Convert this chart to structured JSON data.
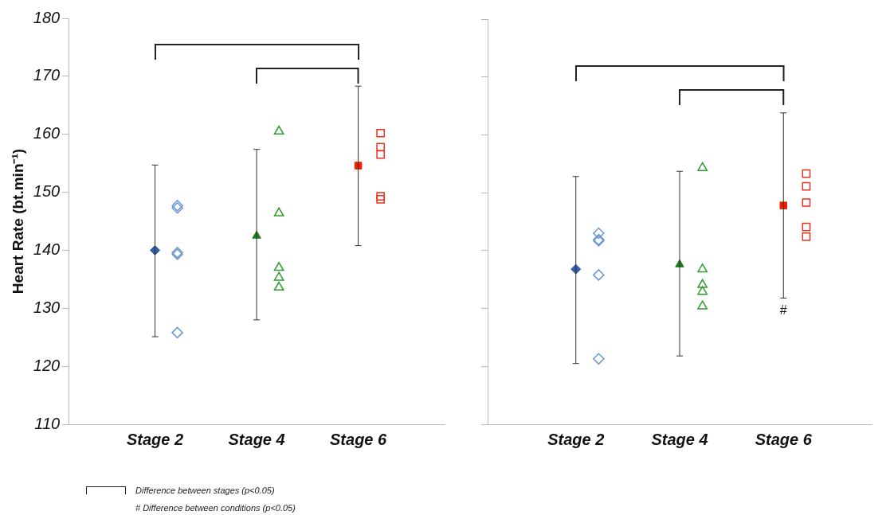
{
  "chart_data": [
    {
      "type": "scatter",
      "categories": [
        "Stage 2",
        "Stage 4",
        "Stage 6"
      ],
      "ylabel": "Heart Rate (bt.min⁻¹)",
      "ylim": [
        110,
        180
      ],
      "yticks": [
        110,
        120,
        130,
        140,
        150,
        160,
        170,
        180
      ],
      "grid": false,
      "annotations": [
        "Difference between stages (p<0.05)",
        "# Difference between conditions (p<0.05)"
      ],
      "series": [
        {
          "color": "#2f5fa6",
          "marker": "diamond",
          "x": [
            "Stage 2"
          ],
          "values": [
            140
          ],
          "errors": [
            [
              125.1,
              154.7
            ]
          ]
        },
        {
          "color": "#6b98d4",
          "marker": "diamond",
          "x": [
            "Stage 2",
            "Stage 2",
            "Stage 2",
            "Stage 2",
            "Stage 2"
          ],
          "values": [
            147.7,
            147.3,
            139.6,
            139.3,
            125.8
          ]
        },
        {
          "color": "#1a7f1a",
          "marker": "triangle",
          "x": [
            "Stage 4"
          ],
          "values": [
            142.5
          ],
          "errors": [
            [
              128,
              157.4
            ]
          ]
        },
        {
          "color": "#2e9a2e",
          "marker": "triangle",
          "x": [
            "Stage 4",
            "Stage 4",
            "Stage 4",
            "Stage 4",
            "Stage 4"
          ],
          "values": [
            160.5,
            146.4,
            137,
            135.3,
            133.6
          ]
        },
        {
          "color": "#f01e00",
          "marker": "square",
          "x": [
            "Stage 6"
          ],
          "values": [
            154.6
          ],
          "errors": [
            [
              140.8,
              168.3
            ]
          ]
        },
        {
          "color": "#f0301e",
          "marker": "square",
          "x": [
            "Stage 6",
            "Stage 6",
            "Stage 6",
            "Stage 6",
            "Stage 6"
          ],
          "values": [
            160.2,
            157.8,
            156.5,
            149.3,
            148.8
          ]
        }
      ]
    },
    {
      "type": "scatter",
      "categories": [
        "Stage 2",
        "Stage 4",
        "Stage 6"
      ],
      "ylim": [
        110,
        180
      ],
      "yticks": [
        110,
        120,
        130,
        140,
        150,
        160,
        170,
        180
      ],
      "grid": false,
      "tick_labels": "x",
      "annotations": [
        "#"
      ],
      "series": [
        {
          "color": "#2f5fa6",
          "marker": "diamond",
          "x": [
            "Stage 2"
          ],
          "values": [
            136.8
          ],
          "errors": [
            [
              120.5,
              152.8
            ]
          ]
        },
        {
          "color": "#6b98d4",
          "marker": "diamond",
          "x": [
            "Stage 2",
            "Stage 2",
            "Stage 2",
            "Stage 2",
            "Stage 2"
          ],
          "values": [
            143,
            141.7,
            141.9,
            135.8,
            121.3
          ]
        },
        {
          "color": "#1a7f1a",
          "marker": "triangle",
          "x": [
            "Stage 4"
          ],
          "values": [
            137.6
          ],
          "errors": [
            [
              121.8,
              153.7
            ]
          ]
        },
        {
          "color": "#2e9a2e",
          "marker": "triangle",
          "x": [
            "Stage 4",
            "Stage 4",
            "Stage 4",
            "Stage 4",
            "Stage 4"
          ],
          "values": [
            154.3,
            136.8,
            134.1,
            132.9,
            130.4
          ]
        },
        {
          "color": "#f01e00",
          "marker": "square",
          "x": [
            "Stage 6"
          ],
          "values": [
            147.8
          ],
          "errors": [
            [
              131.8,
              163.8
            ]
          ]
        },
        {
          "color": "#f0301e",
          "marker": "square",
          "x": [
            "Stage 6",
            "Stage 6",
            "Stage 6",
            "Stage 6",
            "Stage 6"
          ],
          "values": [
            153.3,
            151.1,
            148.3,
            144.1,
            142.4
          ]
        }
      ]
    }
  ]
}
